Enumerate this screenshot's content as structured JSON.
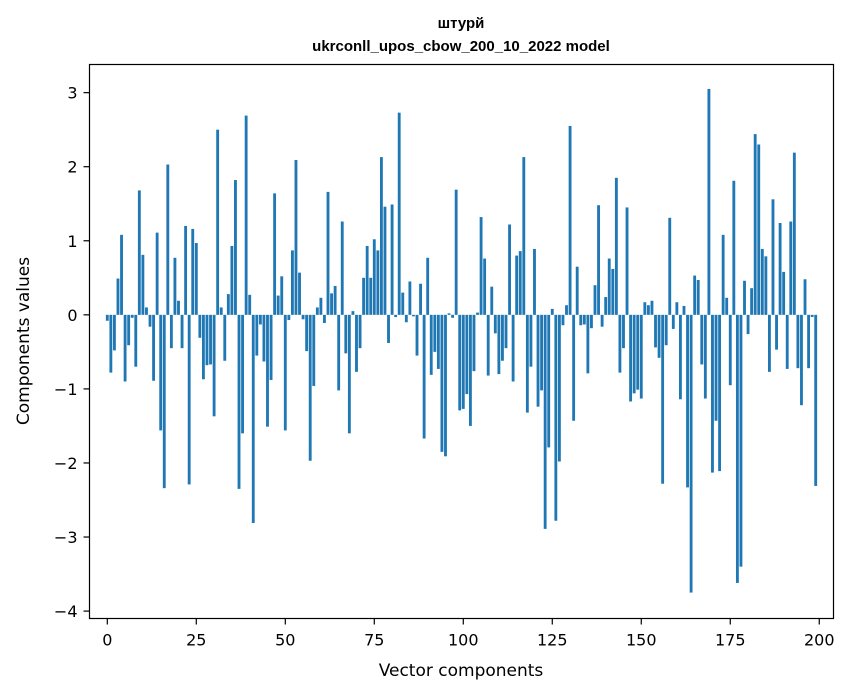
{
  "chart_data": {
    "type": "bar",
    "title": "штурй",
    "subtitle": "ukrconll_upos_cbow_200_10_2022 model",
    "xlabel": "Vector components",
    "ylabel": "Components values",
    "xlim": [
      -5,
      204
    ],
    "ylim": [
      -4.1,
      3.38
    ],
    "xticks": [
      0,
      25,
      50,
      75,
      100,
      125,
      150,
      175,
      200
    ],
    "yticks": [
      -4,
      -3,
      -2,
      -1,
      0,
      1,
      2,
      3
    ],
    "bar_color": "#1f77b4",
    "grid": false,
    "legend": "none",
    "x": [
      0,
      1,
      2,
      3,
      4,
      5,
      6,
      7,
      8,
      9,
      10,
      11,
      12,
      13,
      14,
      15,
      16,
      17,
      18,
      19,
      20,
      21,
      22,
      23,
      24,
      25,
      26,
      27,
      28,
      29,
      30,
      31,
      32,
      33,
      34,
      35,
      36,
      37,
      38,
      39,
      40,
      41,
      42,
      43,
      44,
      45,
      46,
      47,
      48,
      49,
      50,
      51,
      52,
      53,
      54,
      55,
      56,
      57,
      58,
      59,
      60,
      61,
      62,
      63,
      64,
      65,
      66,
      67,
      68,
      69,
      70,
      71,
      72,
      73,
      74,
      75,
      76,
      77,
      78,
      79,
      80,
      81,
      82,
      83,
      84,
      85,
      86,
      87,
      88,
      89,
      90,
      91,
      92,
      93,
      94,
      95,
      96,
      97,
      98,
      99,
      100,
      101,
      102,
      103,
      104,
      105,
      106,
      107,
      108,
      109,
      110,
      111,
      112,
      113,
      114,
      115,
      116,
      117,
      118,
      119,
      120,
      121,
      122,
      123,
      124,
      125,
      126,
      127,
      128,
      129,
      130,
      131,
      132,
      133,
      134,
      135,
      136,
      137,
      138,
      139,
      140,
      141,
      142,
      143,
      144,
      145,
      146,
      147,
      148,
      149,
      150,
      151,
      152,
      153,
      154,
      155,
      156,
      157,
      158,
      159,
      160,
      161,
      162,
      163,
      164,
      165,
      166,
      167,
      168,
      169,
      170,
      171,
      172,
      173,
      174,
      175,
      176,
      177,
      178,
      179,
      180,
      181,
      182,
      183,
      184,
      185,
      186,
      187,
      188,
      189,
      190,
      191,
      192,
      193,
      194,
      195,
      196,
      197,
      198,
      199
    ],
    "values": [
      -0.08,
      -0.78,
      -0.48,
      0.49,
      1.08,
      -0.9,
      -0.41,
      -0.04,
      -0.7,
      1.68,
      0.81,
      0.1,
      -0.16,
      -0.89,
      1.11,
      -1.56,
      -2.34,
      2.03,
      -0.45,
      0.77,
      0.19,
      -0.45,
      1.2,
      -2.29,
      1.16,
      0.97,
      -0.31,
      -0.87,
      -0.68,
      -0.67,
      -1.37,
      2.5,
      0.1,
      -0.62,
      0.28,
      0.93,
      1.82,
      -2.35,
      -1.6,
      2.69,
      0.27,
      -2.81,
      -0.55,
      -0.13,
      -0.63,
      -1.51,
      -0.88,
      1.64,
      0.26,
      0.52,
      -1.56,
      -0.07,
      0.87,
      2.09,
      0.57,
      -0.06,
      -0.49,
      -1.97,
      -0.96,
      0.1,
      0.23,
      -0.11,
      1.66,
      0.29,
      0.39,
      -1.02,
      1.26,
      -0.52,
      -1.6,
      0.05,
      -0.77,
      -0.45,
      0.5,
      0.93,
      0.5,
      1.02,
      0.87,
      2.13,
      1.46,
      -0.38,
      1.49,
      -0.03,
      2.73,
      0.3,
      -0.1,
      0.45,
      -0.02,
      -0.55,
      0.42,
      -1.67,
      0.77,
      -0.81,
      -0.5,
      -0.73,
      -1.85,
      -1.91,
      0.02,
      -0.04,
      1.69,
      -1.29,
      -1.27,
      -1.07,
      -1.5,
      -0.76,
      0.03,
      1.32,
      0.76,
      -0.82,
      0.38,
      -0.25,
      -0.8,
      -0.62,
      -0.45,
      1.22,
      -0.9,
      0.8,
      0.86,
      2.13,
      -1.32,
      -0.7,
      0.89,
      -1.24,
      -1.02,
      -2.89,
      -1.79,
      0.08,
      -2.78,
      -1.98,
      -0.14,
      0.13,
      2.55,
      -1.43,
      0.65,
      -0.14,
      -0.13,
      -0.79,
      -0.18,
      0.4,
      1.48,
      -0.16,
      0.24,
      0.76,
      0.62,
      1.85,
      -0.78,
      -0.45,
      1.45,
      -1.17,
      -1.06,
      -1.01,
      -1.13,
      0.17,
      0.13,
      0.19,
      -0.44,
      -0.58,
      -2.28,
      -0.41,
      1.31,
      -0.19,
      0.17,
      -1.14,
      0.12,
      -2.33,
      -3.75,
      0.53,
      0.47,
      -0.67,
      -1.13,
      3.05,
      -2.13,
      -1.43,
      -2.11,
      1.08,
      0.23,
      -0.95,
      1.81,
      -3.62,
      -3.4,
      0.46,
      -0.26,
      0.36,
      2.44,
      2.3,
      0.89,
      0.79,
      -0.77,
      1.56,
      -0.47,
      1.24,
      0.58,
      -0.73,
      1.26,
      2.19,
      -0.72,
      -1.22,
      0.48,
      -0.72,
      -0.03,
      -2.31
    ]
  }
}
